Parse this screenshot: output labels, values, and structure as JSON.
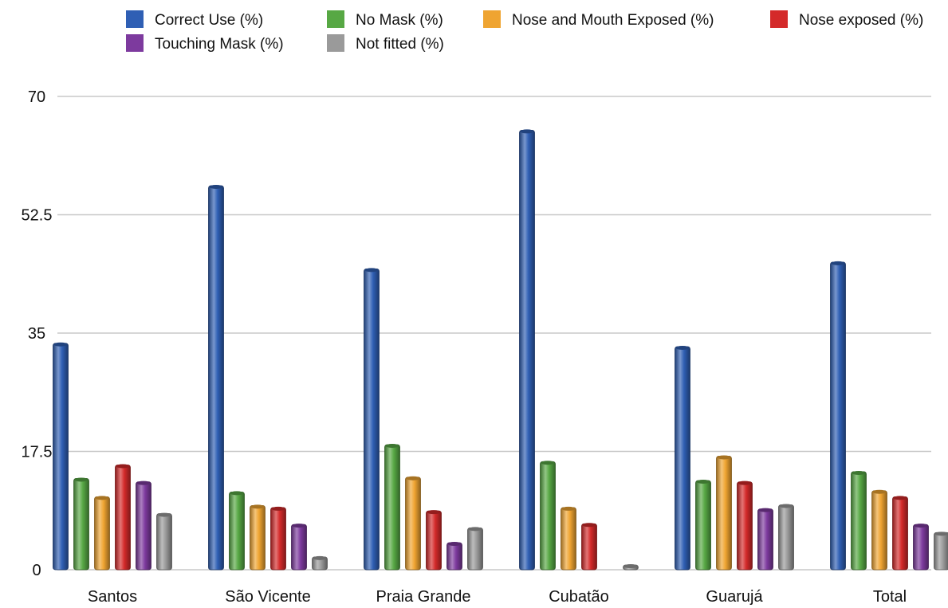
{
  "chart_data": {
    "type": "bar",
    "title": "",
    "xlabel": "",
    "ylabel": "",
    "ylim": [
      0,
      70
    ],
    "yticks": [
      "0",
      "17.5",
      "35",
      "52.5",
      "70"
    ],
    "grid": true,
    "legend_position": "top",
    "categories": [
      "Santos",
      "São Vicente",
      "Praia Grande",
      "Cubatão",
      "Guarujá",
      "Total"
    ],
    "series": [
      {
        "name": "Correct Use (%)",
        "color": "#2f5fb4",
        "values": [
          33.5,
          56.8,
          44.5,
          65.0,
          33.0,
          45.5
        ]
      },
      {
        "name": "No Mask (%)",
        "color": "#57a844",
        "values": [
          13.5,
          11.5,
          18.5,
          16.0,
          13.2,
          14.5
        ]
      },
      {
        "name": "Nose and Mouth Exposed (%)",
        "color": "#efa431",
        "values": [
          10.8,
          9.5,
          13.7,
          9.2,
          16.8,
          11.7
        ]
      },
      {
        "name": "Nose exposed (%)",
        "color": "#d42a2a",
        "values": [
          15.5,
          9.2,
          8.7,
          6.8,
          13.0,
          10.8
        ]
      },
      {
        "name": "Touching Mask (%)",
        "color": "#7d3a9e",
        "values": [
          13.0,
          6.7,
          4.0,
          0,
          9.0,
          6.7
        ]
      },
      {
        "name": "Not fitted (%)",
        "color": "#9a9a9a",
        "values": [
          8.3,
          1.9,
          6.2,
          0.7,
          9.6,
          5.5
        ]
      }
    ]
  }
}
